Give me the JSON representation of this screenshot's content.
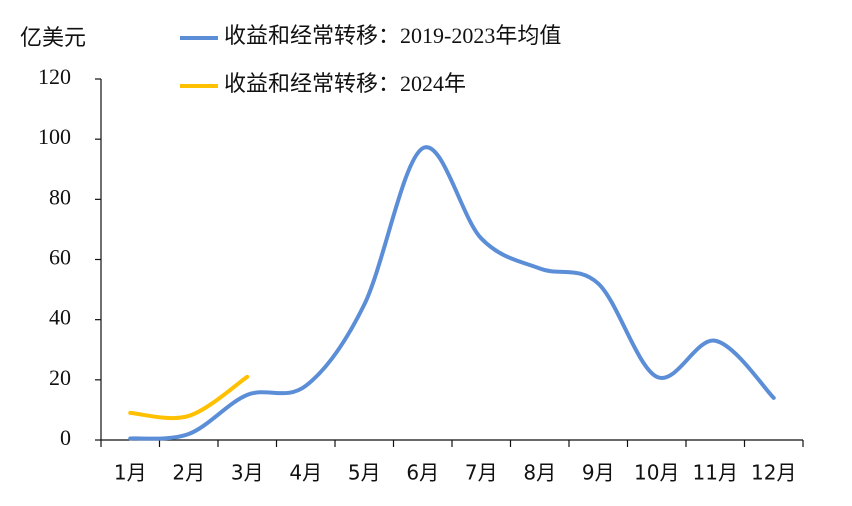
{
  "chart_data": {
    "type": "line",
    "y_label": "亿美元",
    "categories": [
      "1月",
      "2月",
      "3月",
      "4月",
      "5月",
      "6月",
      "7月",
      "8月",
      "9月",
      "10月",
      "11月",
      "12月"
    ],
    "series": [
      {
        "name": "收益和经常转移：2019-2023年均值",
        "color": "#5b8ed6",
        "values": [
          0.5,
          2,
          15,
          18,
          45,
          97,
          67,
          57,
          52,
          21,
          33,
          14
        ]
      },
      {
        "name": "收益和经常转移：2024年",
        "color": "#ffc000",
        "values": [
          9,
          8,
          21,
          null,
          null,
          null,
          null,
          null,
          null,
          null,
          null,
          null
        ]
      }
    ],
    "ylim": [
      0,
      120
    ],
    "yticks": [
      0,
      20,
      40,
      60,
      80,
      100,
      120
    ],
    "grid": false
  }
}
